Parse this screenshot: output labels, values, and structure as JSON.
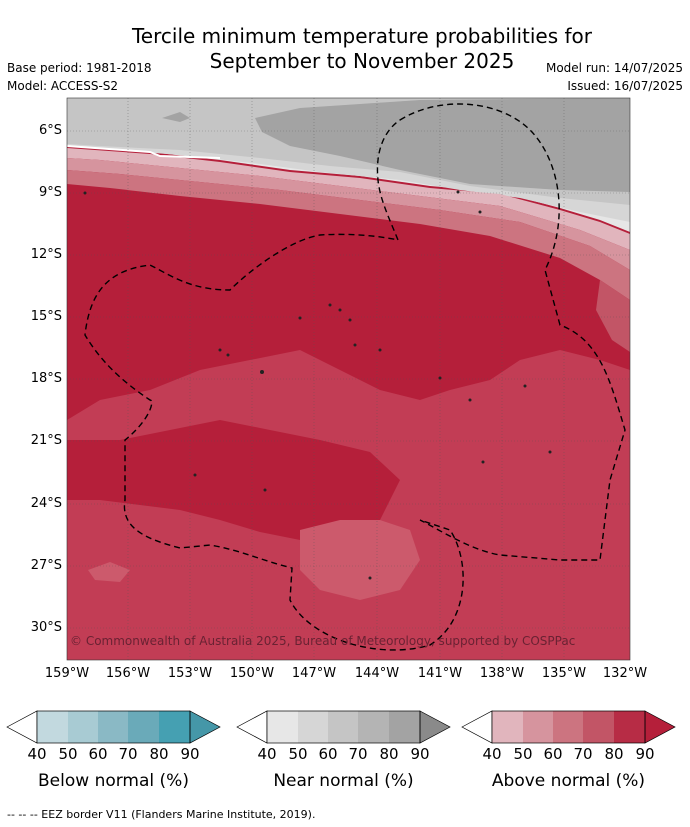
{
  "title_line1": "Tercile minimum temperature probabilities for",
  "title_line2": "September to November 2025",
  "base_period": "Base period: 1981-2018",
  "model": "Model: ACCESS-S2",
  "model_run": "Model run: 14/07/2025",
  "issued": "Issued: 16/07/2025",
  "copyright": "© Commonwealth of Australia 2025, Bureau of Meteorology, supported by COSPPac",
  "lat_labels": [
    "6°S",
    "9°S",
    "12°S",
    "15°S",
    "18°S",
    "21°S",
    "24°S",
    "27°S",
    "30°S"
  ],
  "lon_labels": [
    "159°W",
    "156°W",
    "153°W",
    "150°W",
    "147°W",
    "144°W",
    "141°W",
    "138°W",
    "135°W",
    "132°W"
  ],
  "legends": [
    {
      "label": "Below normal (%)",
      "ticks": [
        "40",
        "50",
        "60",
        "70",
        "80",
        "90"
      ],
      "colors": [
        "#ffffff",
        "#c2d9df",
        "#a8cbd3",
        "#8ab9c5",
        "#6aaab9",
        "#45a0b2",
        "#4597a8"
      ]
    },
    {
      "label": "Near normal (%)",
      "ticks": [
        "40",
        "50",
        "60",
        "70",
        "80",
        "90"
      ],
      "colors": [
        "#ffffff",
        "#e7e7e7",
        "#d6d6d6",
        "#c5c5c5",
        "#b4b4b4",
        "#a3a3a3",
        "#8a8a8a"
      ]
    },
    {
      "label": "Above normal (%)",
      "ticks": [
        "40",
        "50",
        "60",
        "70",
        "80",
        "90"
      ],
      "colors": [
        "#ffffff",
        "#e1b5bd",
        "#d6949e",
        "#cc7480",
        "#c25566",
        "#b51f3a",
        "#b51f3a"
      ]
    }
  ],
  "footer": "--  --  -- EEZ border V11 (Flanders Marine Institute, 2019)."
}
